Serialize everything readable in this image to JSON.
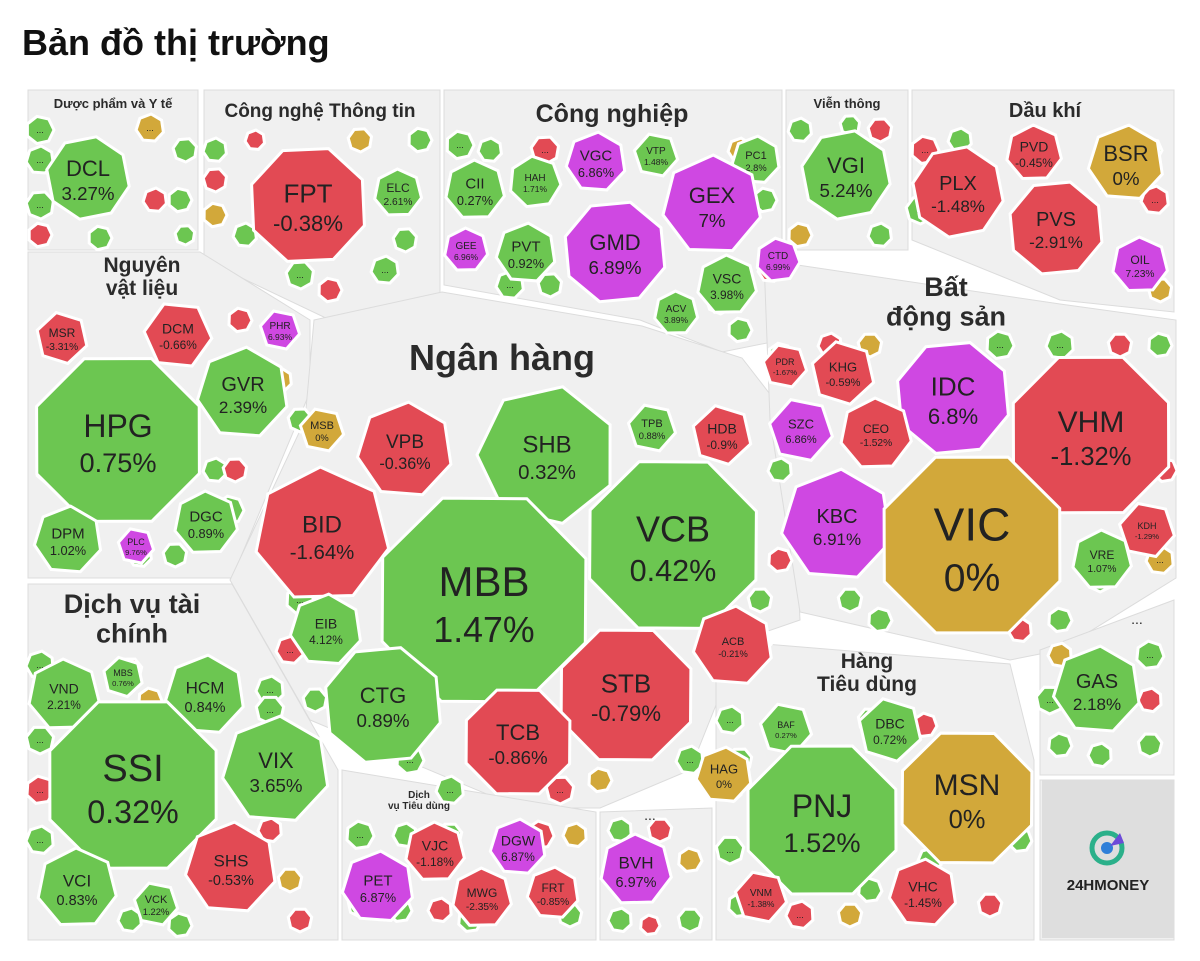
{
  "page_title": "Bản đồ thị trường",
  "logo_text": "24HMONEY",
  "colors": {
    "up": "#6cc651",
    "down": "#e24a54",
    "flat": "#d2a83a",
    "ceiling": "#cf48e2",
    "floor": "#3ec4d6",
    "panel": "#f0f0f0",
    "border": "#ffffff"
  },
  "chart_data": {
    "type": "treemap",
    "title": "Bản đồ thị trường",
    "sectors": [
      {
        "name": "Dược phẩm và Y tế",
        "stocks": [
          {
            "ticker": "DCL",
            "change": "3.27%"
          }
        ]
      },
      {
        "name": "Công nghệ Thông tin",
        "stocks": [
          {
            "ticker": "FPT",
            "change": "-0.38%"
          },
          {
            "ticker": "ELC",
            "change": "2.61%"
          }
        ]
      },
      {
        "name": "Công nghiệp",
        "stocks": [
          {
            "ticker": "VGC",
            "change": "6.86%"
          },
          {
            "ticker": "VTP",
            "change": "1.48%"
          },
          {
            "ticker": "PC1",
            "change": "2.8%"
          },
          {
            "ticker": "CII",
            "change": "0.27%"
          },
          {
            "ticker": "HAH",
            "change": "1.71%"
          },
          {
            "ticker": "GEX",
            "change": "7%"
          },
          {
            "ticker": "GMD",
            "change": "6.89%"
          },
          {
            "ticker": "GEE",
            "change": "6.96%"
          },
          {
            "ticker": "PVT",
            "change": "0.92%"
          },
          {
            "ticker": "CTD",
            "change": "6.99%"
          },
          {
            "ticker": "VSC",
            "change": "3.98%"
          },
          {
            "ticker": "ACV",
            "change": "3.89%"
          }
        ]
      },
      {
        "name": "Viễn thông",
        "stocks": [
          {
            "ticker": "VGI",
            "change": "5.24%"
          }
        ]
      },
      {
        "name": "Dầu khí",
        "stocks": [
          {
            "ticker": "PVD",
            "change": "-0.45%"
          },
          {
            "ticker": "BSR",
            "change": "0%"
          },
          {
            "ticker": "PLX",
            "change": "-1.48%"
          },
          {
            "ticker": "PVS",
            "change": "-2.91%"
          },
          {
            "ticker": "OIL",
            "change": "7.23%"
          }
        ]
      },
      {
        "name": "Nguyên vật liệu",
        "stocks": [
          {
            "ticker": "MSR",
            "change": "-3.31%"
          },
          {
            "ticker": "DCM",
            "change": "-0.66%"
          },
          {
            "ticker": "PHR",
            "change": "6.93%"
          },
          {
            "ticker": "HPG",
            "change": "0.75%"
          },
          {
            "ticker": "GVR",
            "change": "2.39%"
          },
          {
            "ticker": "DPM",
            "change": "1.02%"
          },
          {
            "ticker": "PLC",
            "change": "9.76%"
          },
          {
            "ticker": "DGC",
            "change": "0.89%"
          }
        ]
      },
      {
        "name": "Ngân hàng",
        "stocks": [
          {
            "ticker": "MSB",
            "change": "0%"
          },
          {
            "ticker": "VPB",
            "change": "-0.36%"
          },
          {
            "ticker": "SHB",
            "change": "0.32%"
          },
          {
            "ticker": "TPB",
            "change": "0.88%"
          },
          {
            "ticker": "HDB",
            "change": "-0.9%"
          },
          {
            "ticker": "BID",
            "change": "-1.64%"
          },
          {
            "ticker": "VCB",
            "change": "0.42%"
          },
          {
            "ticker": "MBB",
            "change": "1.47%"
          },
          {
            "ticker": "EIB",
            "change": "4.12%"
          },
          {
            "ticker": "ACB",
            "change": "-0.21%"
          },
          {
            "ticker": "CTG",
            "change": "0.89%"
          },
          {
            "ticker": "STB",
            "change": "-0.79%"
          },
          {
            "ticker": "TCB",
            "change": "-0.86%"
          }
        ]
      },
      {
        "name": "Bất động sản",
        "stocks": [
          {
            "ticker": "PDR",
            "change": "-1.67%"
          },
          {
            "ticker": "KHG",
            "change": "-0.59%"
          },
          {
            "ticker": "IDC",
            "change": "6.8%"
          },
          {
            "ticker": "SZC",
            "change": "6.86%"
          },
          {
            "ticker": "CEO",
            "change": "-1.52%"
          },
          {
            "ticker": "VHM",
            "change": "-1.32%"
          },
          {
            "ticker": "KBC",
            "change": "6.91%"
          },
          {
            "ticker": "VIC",
            "change": "0%"
          },
          {
            "ticker": "KDH",
            "change": "-1.29%"
          },
          {
            "ticker": "VRE",
            "change": "1.07%"
          }
        ]
      },
      {
        "name": "Dịch vụ tài chính",
        "stocks": [
          {
            "ticker": "VND",
            "change": "2.21%"
          },
          {
            "ticker": "MBS",
            "change": "0.76%"
          },
          {
            "ticker": "HCM",
            "change": "0.84%"
          },
          {
            "ticker": "SSI",
            "change": "0.32%"
          },
          {
            "ticker": "VIX",
            "change": "3.65%"
          },
          {
            "ticker": "SHS",
            "change": "-0.53%"
          },
          {
            "ticker": "VCI",
            "change": "0.83%"
          },
          {
            "ticker": "VCK",
            "change": "1.22%"
          }
        ]
      },
      {
        "name": "Dịch vụ Tiêu dùng",
        "stocks": [
          {
            "ticker": "VJC",
            "change": "-1.18%"
          },
          {
            "ticker": "DGW",
            "change": "6.87%"
          },
          {
            "ticker": "PET",
            "change": "6.87%"
          },
          {
            "ticker": "MWG",
            "change": "-2.35%"
          },
          {
            "ticker": "FRT",
            "change": "-0.85%"
          }
        ]
      },
      {
        "name": "",
        "stocks": [
          {
            "ticker": "BVH",
            "change": "6.97%"
          }
        ]
      },
      {
        "name": "Hàng Tiêu dùng",
        "stocks": [
          {
            "ticker": "BAF",
            "change": "0.27%"
          },
          {
            "ticker": "DBC",
            "change": "0.72%"
          },
          {
            "ticker": "HAG",
            "change": "0%"
          },
          {
            "ticker": "PNJ",
            "change": "1.52%"
          },
          {
            "ticker": "MSN",
            "change": "0%"
          },
          {
            "ticker": "VNM",
            "change": "-1.38%"
          },
          {
            "ticker": "VHC",
            "change": "-1.45%"
          }
        ]
      },
      {
        "name": "",
        "stocks": [
          {
            "ticker": "GAS",
            "change": "2.18%"
          }
        ]
      }
    ],
    "more_marker": "..."
  }
}
